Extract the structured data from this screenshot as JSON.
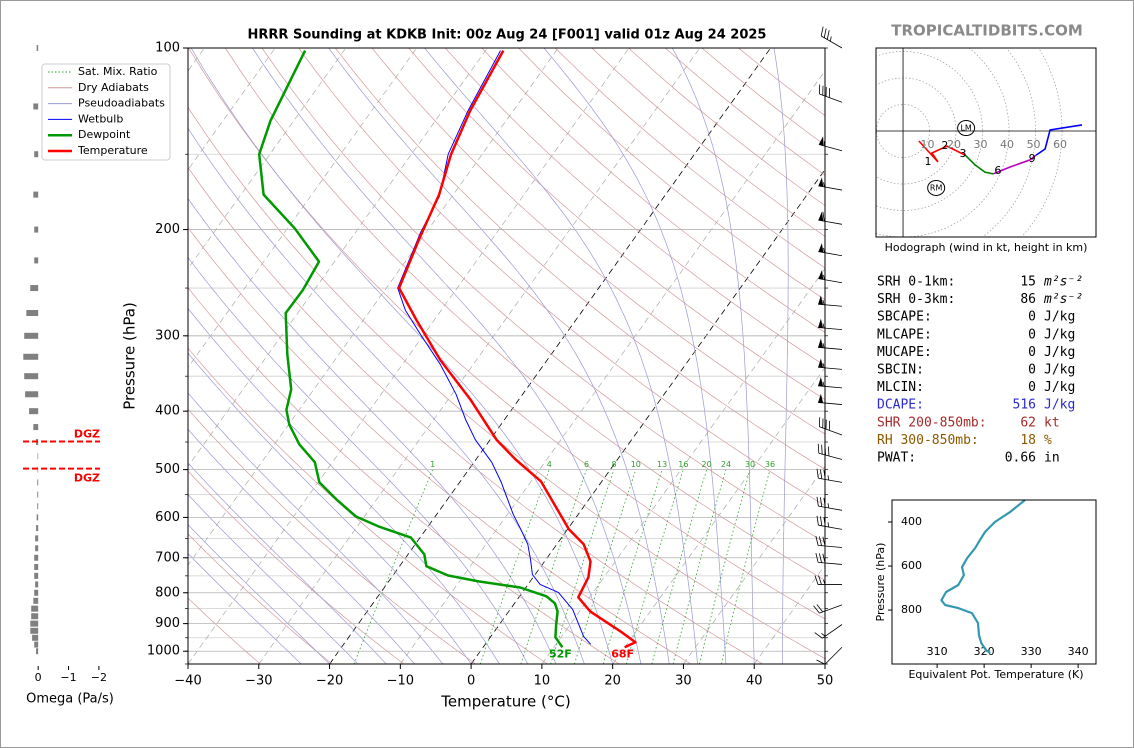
{
  "watermark": "TROPICALTIDBITS.COM",
  "indices": [
    {
      "label": "SRH 0-1km:",
      "value": 15,
      "unit": "m²s⁻²",
      "color": "#000000"
    },
    {
      "label": "SRH 0-3km:",
      "value": 86,
      "unit": "m²s⁻²",
      "color": "#000000"
    },
    {
      "label": "SBCAPE:",
      "value": 0,
      "unit": "J/kg",
      "color": "#000000"
    },
    {
      "label": "MLCAPE:",
      "value": 0,
      "unit": "J/kg",
      "color": "#000000"
    },
    {
      "label": "MUCAPE:",
      "value": 0,
      "unit": "J/kg",
      "color": "#000000"
    },
    {
      "label": "SBCIN:",
      "value": 0,
      "unit": "J/kg",
      "color": "#000000"
    },
    {
      "label": "MLCIN:",
      "value": 0,
      "unit": "J/kg",
      "color": "#000000"
    },
    {
      "label": "DCAPE:",
      "value": 516,
      "unit": "J/kg",
      "color": "#2a2ad0"
    },
    {
      "label": "SHR 200-850mb:",
      "value": 62,
      "unit": "kt",
      "color": "#a52a2a"
    },
    {
      "label": "RH 300-850mb:",
      "value": 18,
      "unit": "%",
      "color": "#8b5a00"
    },
    {
      "label": "PWAT:",
      "value": 0.66,
      "unit": "in",
      "color": "#000000"
    }
  ],
  "chart_data": [
    {
      "type": "skewt",
      "title": "HRRR Sounding at KDKB Init: 00z Aug 24 [F001] valid 01z Aug 24 2025",
      "xlabel": "Temperature (°C)",
      "ylabel": "Pressure (hPa)",
      "xlim": [
        -40,
        50
      ],
      "ylim": [
        1050,
        100
      ],
      "log_y": true,
      "grid": true,
      "legend": "upper left",
      "xticks": [
        {
          "value": -40,
          "label": "−40"
        },
        {
          "value": -30,
          "label": "−30"
        },
        {
          "value": -20,
          "label": "−20"
        },
        {
          "value": -10,
          "label": "−10"
        },
        0,
        10,
        20,
        30,
        40,
        50
      ],
      "yticks": [
        100,
        200,
        300,
        400,
        500,
        600,
        700,
        800,
        900,
        1000
      ],
      "reference_lines": [
        {
          "name": "Sat. Mix. Ratio",
          "color": "#2ca02c",
          "values": [
            1,
            4,
            6,
            8,
            10,
            13,
            16,
            20,
            24,
            30,
            36
          ]
        },
        {
          "name": "Dry Adiabats",
          "color": "#d49a9a"
        },
        {
          "name": "Pseudoadiabats",
          "color": "#9a9ad4"
        }
      ],
      "series": [
        {
          "name": "Wetbulb",
          "color": "#0000ff",
          "pressure": [
            974,
            945,
            852,
            799,
            775,
            746,
            704,
            665,
            628,
            593,
            525,
            486,
            446,
            413,
            375,
            335,
            299,
            272,
            250,
            202,
            176,
            150,
            127,
            101
          ],
          "values": [
            14.9,
            13.1,
            8.8,
            5.1,
            1.7,
            -0.4,
            -2.2,
            -4.1,
            -6.6,
            -9.2,
            -14.1,
            -17.5,
            -22.1,
            -25.5,
            -29.4,
            -34.6,
            -40.4,
            -45.1,
            -48.4,
            -50.8,
            -51.8,
            -54.8,
            -56.4,
            -57.9
          ]
        },
        {
          "name": "Dewpoint",
          "color": "#009900",
          "surface_label": "52F",
          "pressure": [
            985,
            948,
            902,
            859,
            833,
            811,
            784,
            766,
            749,
            723,
            691,
            648,
            621,
            598,
            560,
            525,
            486,
            454,
            421,
            398,
            368,
            322,
            275,
            252,
            226,
            199,
            175,
            150,
            132,
            101
          ],
          "values": [
            11.2,
            9.2,
            8.0,
            6.9,
            5.7,
            3.8,
            -0.8,
            -7.3,
            -12.2,
            -16.2,
            -17.7,
            -21.3,
            -27.0,
            -31.2,
            -35.7,
            -39.8,
            -42.5,
            -46.5,
            -49.9,
            -51.8,
            -53.2,
            -57.3,
            -61.7,
            -61.6,
            -62.2,
            -69.0,
            -76.8,
            -81.5,
            -83.3,
            -85.5
          ]
        },
        {
          "name": "Temperature",
          "color": "#ff0000",
          "surface_label": "68F",
          "pressure": [
            985,
            966,
            927,
            859,
            814,
            754,
            710,
            665,
            628,
            523,
            481,
            446,
            383,
            329,
            282,
            250,
            208,
            175,
            150,
            127,
            101
          ],
          "values": [
            20.0,
            21.0,
            17.8,
            11.5,
            8.4,
            7.8,
            6.5,
            3.8,
            0.2,
            -8.6,
            -14.4,
            -19.1,
            -26.8,
            -35.1,
            -42.6,
            -48.2,
            -50.3,
            -52.0,
            -54.4,
            -56.1,
            -57.5
          ]
        }
      ],
      "winds": {
        "pressure": [
          100,
          123,
          148,
          172,
          196,
          221,
          245,
          268,
          293,
          316,
          341,
          366,
          390,
          438,
          481,
          525,
          584,
          628,
          673,
          718,
          775,
          838,
          903,
          985
        ],
        "speed": [
          35,
          40,
          55,
          55,
          60,
          55,
          55,
          55,
          55,
          55,
          55,
          55,
          50,
          40,
          40,
          35,
          35,
          35,
          30,
          30,
          25,
          20,
          15,
          10
        ],
        "direction": [
          300,
          290,
          285,
          280,
          280,
          280,
          280,
          275,
          275,
          275,
          275,
          275,
          275,
          290,
          285,
          280,
          280,
          280,
          275,
          275,
          270,
          250,
          235,
          225
        ]
      }
    },
    {
      "type": "hbar",
      "xlabel": "Omega (Pa/s)",
      "color": "#808080",
      "xlim": [
        0.5,
        -2.3
      ],
      "ylim": [
        1050,
        100
      ],
      "log_y": true,
      "xticks": [
        0,
        {
          "value": -1,
          "label": "−1"
        },
        {
          "value": -2,
          "label": "−2"
        }
      ],
      "pressure": [
        100,
        125,
        150,
        175,
        200,
        225,
        250,
        275,
        300,
        325,
        350,
        375,
        400,
        425,
        450,
        475,
        500,
        525,
        550,
        575,
        600,
        625,
        650,
        675,
        700,
        725,
        750,
        775,
        800,
        825,
        850,
        875,
        900,
        925,
        950,
        975,
        1000
      ],
      "values": [
        0.05,
        0.16,
        0.13,
        0.16,
        0.13,
        0.13,
        0.26,
        0.39,
        0.46,
        0.49,
        0.46,
        0.43,
        0.3,
        0.16,
        0.07,
        0.02,
        0.02,
        0.03,
        0.03,
        0.03,
        0.05,
        0.07,
        0.1,
        0.1,
        0.13,
        0.13,
        0.13,
        0.1,
        0.13,
        0.16,
        0.23,
        0.23,
        0.26,
        0.26,
        0.2,
        0.13,
        0.07
      ],
      "dgz": [
        {
          "label": "DGZ",
          "pressure": 449,
          "color": "#ff0000"
        },
        {
          "label": "DGZ",
          "pressure": 498,
          "color": "#ff0000"
        }
      ]
    },
    {
      "type": "hodograph",
      "caption": "Hodograph (wind in kt, height in km)",
      "xlim": [
        -10.2,
        72.8
      ],
      "ylim": [
        -40,
        31.3
      ],
      "rings": [
        10,
        20,
        30,
        40,
        50,
        60
      ],
      "series": [
        {
          "color": "#ff0000",
          "u": [
            6.0,
            13.2,
            10.9,
            16.6,
            23.4
          ],
          "v": [
            -3.8,
            -11.7,
            -8.3,
            -5.7,
            -9.1
          ]
        },
        {
          "color": "#008000",
          "u": [
            23.4,
            27.2,
            30.9,
            34.0
          ],
          "v": [
            -9.1,
            -12.8,
            -15.5,
            -16.2
          ]
        },
        {
          "color": "#bb00bb",
          "u": [
            34.0,
            40.4,
            47.9,
            50.2
          ],
          "v": [
            -16.2,
            -13.6,
            -10.9,
            -9.1
          ]
        },
        {
          "color": "#0000ff",
          "u": [
            50.2,
            53.6,
            55.5,
            67.5
          ],
          "v": [
            -9.1,
            -6.8,
            0.4,
            2.3
          ]
        }
      ],
      "height_marks": {
        "labels": [
          1,
          2,
          3,
          6,
          9
        ],
        "u": [
          9.4,
          15.8,
          22.6,
          35.8,
          48.7
        ],
        "v": [
          -11.7,
          -5.7,
          -8.7,
          -15.1,
          -10.6
        ]
      },
      "storm_motion": [
        {
          "label": "LM",
          "u": 23.8,
          "v": 1.1
        },
        {
          "label": "RM",
          "u": 12.5,
          "v": -21.5
        }
      ]
    },
    {
      "type": "line",
      "xlabel": "Equivalent Pot. Temperature (K)",
      "ylabel": "Pressure (hPa)",
      "color": "#3399b0",
      "xlim": [
        300.4,
        343.8
      ],
      "ylim": [
        1045,
        300
      ],
      "xticks": [
        310,
        320,
        330,
        340
      ],
      "yticks": [
        400,
        600,
        800
      ],
      "x": [
        328.7,
        325.5,
        322.3,
        320.2,
        319.1,
        318.1,
        316.4,
        315.3,
        315.7,
        314.5,
        311.9,
        310.9,
        311.7,
        314.5,
        317.4,
        318.7,
        318.9,
        319.4,
        320.4,
        321.3
      ],
      "y": [
        300,
        355,
        400,
        445,
        482,
        518,
        564,
        605,
        641,
        686,
        718,
        755,
        777,
        791,
        814,
        859,
        914,
        950,
        982,
        995
      ]
    }
  ]
}
